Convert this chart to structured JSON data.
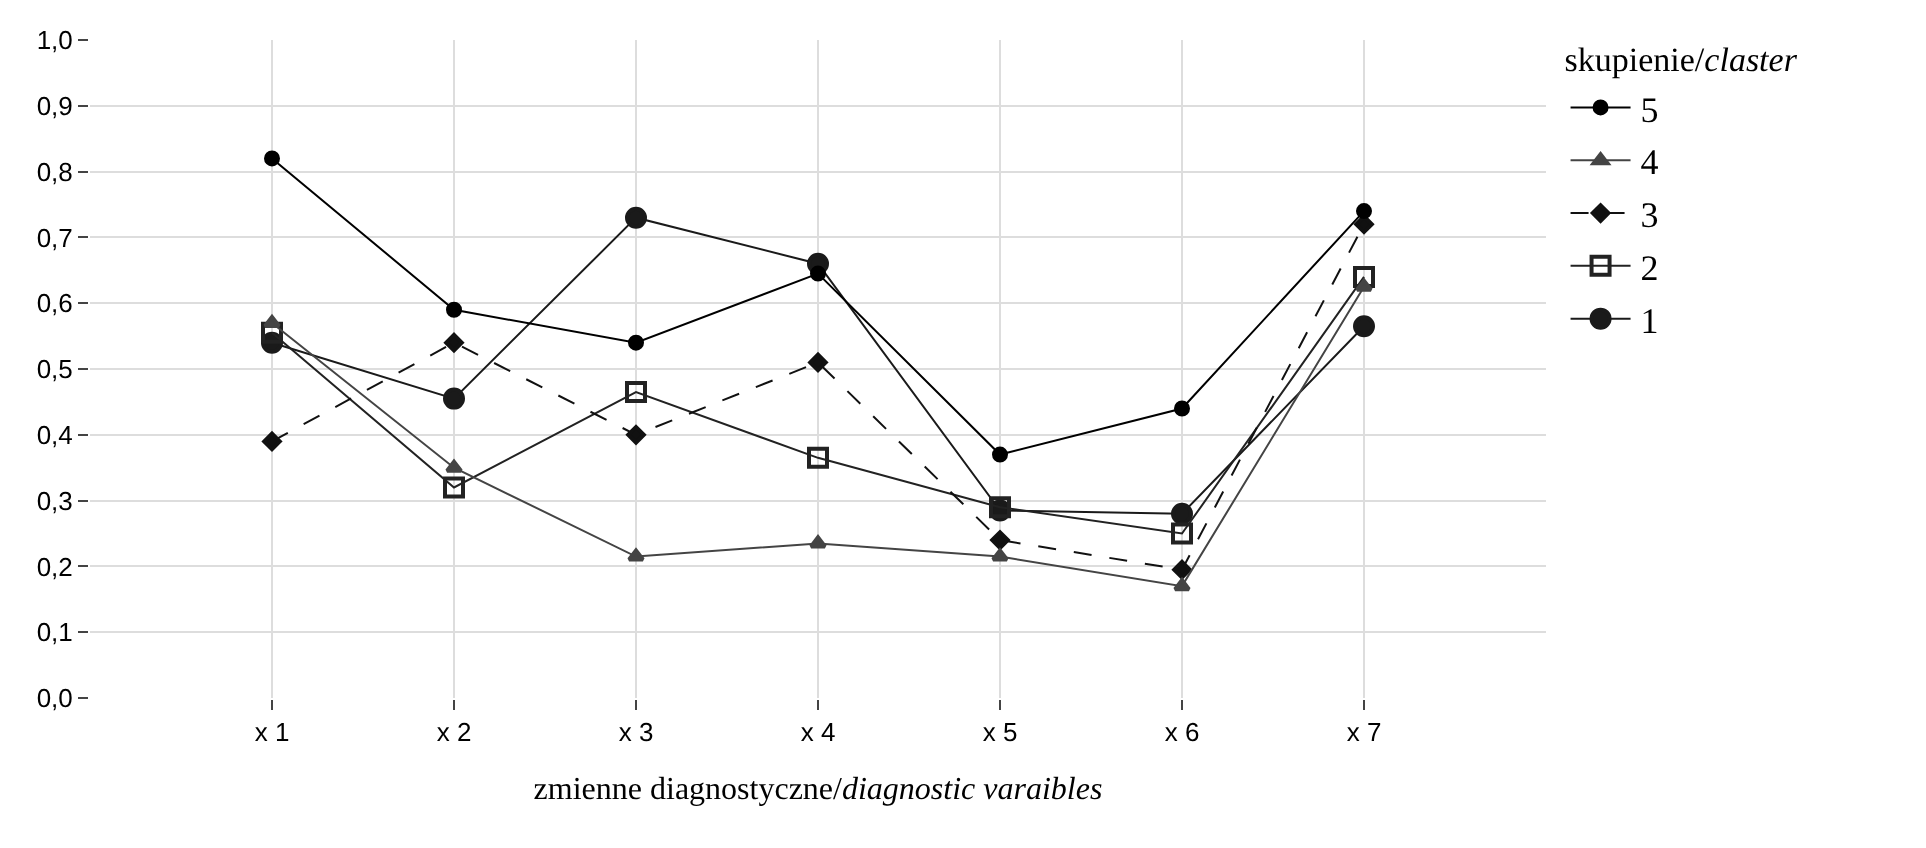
{
  "chart_data": {
    "type": "line",
    "xlabel": "zmienne diagnostyczne/diagnostic varaibles",
    "legend_title": "skupienie/claster",
    "categories": [
      "x 1",
      "x 2",
      "x 3",
      "x 4",
      "x 5",
      "x 6",
      "x 7"
    ],
    "series": [
      {
        "name": "5",
        "color": "#000000",
        "marker": "circle",
        "line_style": "solid",
        "values": [
          0.82,
          0.59,
          0.54,
          0.645,
          0.37,
          0.44,
          0.74
        ]
      },
      {
        "name": "4",
        "color": "#444444",
        "marker": "triangle",
        "line_style": "solid",
        "values": [
          0.57,
          0.35,
          0.215,
          0.235,
          0.215,
          0.17,
          0.625
        ]
      },
      {
        "name": "3",
        "color": "#111111",
        "marker": "diamond",
        "line_style": "dashed",
        "values": [
          0.39,
          0.54,
          0.4,
          0.51,
          0.24,
          0.195,
          0.72
        ]
      },
      {
        "name": "2",
        "color": "#222222",
        "marker": "square",
        "line_style": "solid",
        "values": [
          0.555,
          0.32,
          0.465,
          0.365,
          0.29,
          0.25,
          0.64
        ]
      },
      {
        "name": "1",
        "color": "#1a1a1a",
        "marker": "circle",
        "line_style": "solid",
        "values": [
          0.54,
          0.455,
          0.73,
          0.66,
          0.285,
          0.28,
          0.565
        ]
      }
    ],
    "ylim": [
      0,
      1
    ],
    "yticks": [
      {
        "value": 0,
        "label": "0,0"
      },
      {
        "value": 0.1,
        "label": "0,1"
      },
      {
        "value": 0.2,
        "label": "0,2"
      },
      {
        "value": 0.3,
        "label": "0,3"
      },
      {
        "value": 0.4,
        "label": "0,4"
      },
      {
        "value": 0.5,
        "label": "0,5"
      },
      {
        "value": 0.6,
        "label": "0,6"
      },
      {
        "value": 0.7,
        "label": "0,7"
      },
      {
        "value": 0.8,
        "label": "0,8"
      },
      {
        "value": 0.9,
        "label": "0,9"
      },
      {
        "value": 1,
        "label": "1,0"
      }
    ],
    "grid": true,
    "legend": "top right"
  }
}
